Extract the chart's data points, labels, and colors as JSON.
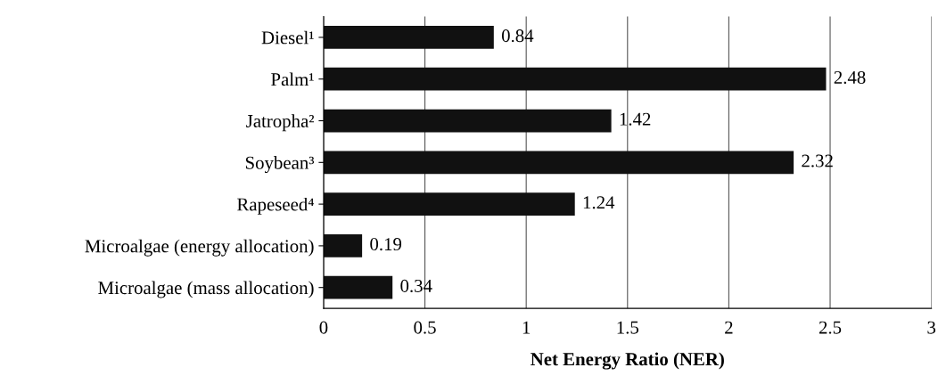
{
  "chart_data": {
    "type": "bar",
    "orientation": "horizontal",
    "xlabel": "Net Energy Ratio (NER)",
    "categories": [
      "Diesel¹",
      "Palm¹",
      "Jatropha²",
      "Soybean³",
      "Rapeseed⁴",
      "Microalgae (energy allocation)",
      "Microalgae (mass allocation)"
    ],
    "values": [
      0.84,
      2.48,
      1.42,
      2.32,
      1.24,
      0.19,
      0.34
    ],
    "color": "#111111",
    "data_labels": true,
    "xlim": [
      0,
      3
    ],
    "xticks": [
      0,
      0.5,
      1,
      1.5,
      2,
      2.5,
      3
    ],
    "grid": "x",
    "legend": false
  }
}
